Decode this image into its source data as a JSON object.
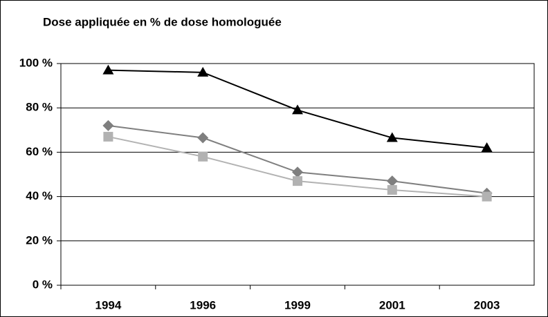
{
  "chart_data": {
    "type": "line",
    "title": "Dose appliquée en % de dose homologuée",
    "categories": [
      "1994",
      "1996",
      "1999",
      "2001",
      "2003"
    ],
    "series": [
      {
        "color": "#000000",
        "marker": "triangle",
        "values": [
          97,
          96,
          79,
          66.5,
          62
        ]
      },
      {
        "color": "#7f7f7f",
        "marker": "diamond",
        "values": [
          72,
          66.5,
          51,
          47,
          41.5
        ]
      },
      {
        "color": "#b2b2b2",
        "marker": "square",
        "values": [
          67,
          58,
          47,
          43,
          40
        ]
      }
    ],
    "ylim": [
      0,
      100
    ],
    "yticks": [
      {
        "value": 0,
        "label": "0 %"
      },
      {
        "value": 20,
        "label": "20 %"
      },
      {
        "value": 40,
        "label": "40 %"
      },
      {
        "value": 60,
        "label": "60 %"
      },
      {
        "value": 80,
        "label": "80 %"
      },
      {
        "value": 100,
        "label": "100 %"
      }
    ],
    "grid": true
  }
}
